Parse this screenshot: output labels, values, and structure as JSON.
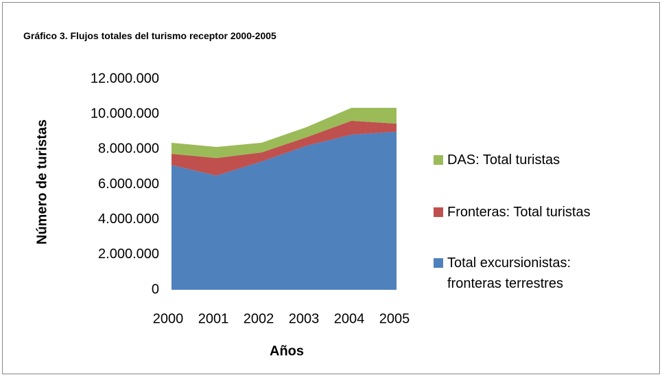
{
  "chart_data": {
    "type": "stacked_area",
    "title": "Gráfico 3. Flujos totales del turismo receptor 2000-2005",
    "x_label": "Años",
    "y_label": "Número de turistas",
    "categories": [
      "2000",
      "2001",
      "2002",
      "2003",
      "2004",
      "2005"
    ],
    "series": [
      {
        "name": "Total excursionistas: fronteras terrestres",
        "color": "#4f81bd",
        "values": [
          7100000,
          6500000,
          7300000,
          8200000,
          8830000,
          9000000
        ]
      },
      {
        "name": "Fronteras: Total turistas",
        "color": "#c0504d",
        "values": [
          640000,
          1000000,
          520000,
          480000,
          790000,
          460000
        ]
      },
      {
        "name": "DAS: Total turistas",
        "color": "#9bbb59",
        "values": [
          630000,
          630000,
          550000,
          580000,
          740000,
          900000
        ]
      }
    ],
    "ylim": [
      0,
      12000000
    ],
    "yticks": [
      0,
      {
        "value": 2000000,
        "label": "2.000.000"
      },
      {
        "value": 4000000,
        "label": "4.000.000"
      },
      {
        "value": 6000000,
        "label": "6.000.000"
      },
      {
        "value": 8000000,
        "label": "8.000.000"
      },
      {
        "value": 10000000,
        "label": "10.000.000"
      },
      {
        "value": 12000000,
        "label": "12.000.000"
      }
    ],
    "grid": false,
    "legend": "right"
  }
}
